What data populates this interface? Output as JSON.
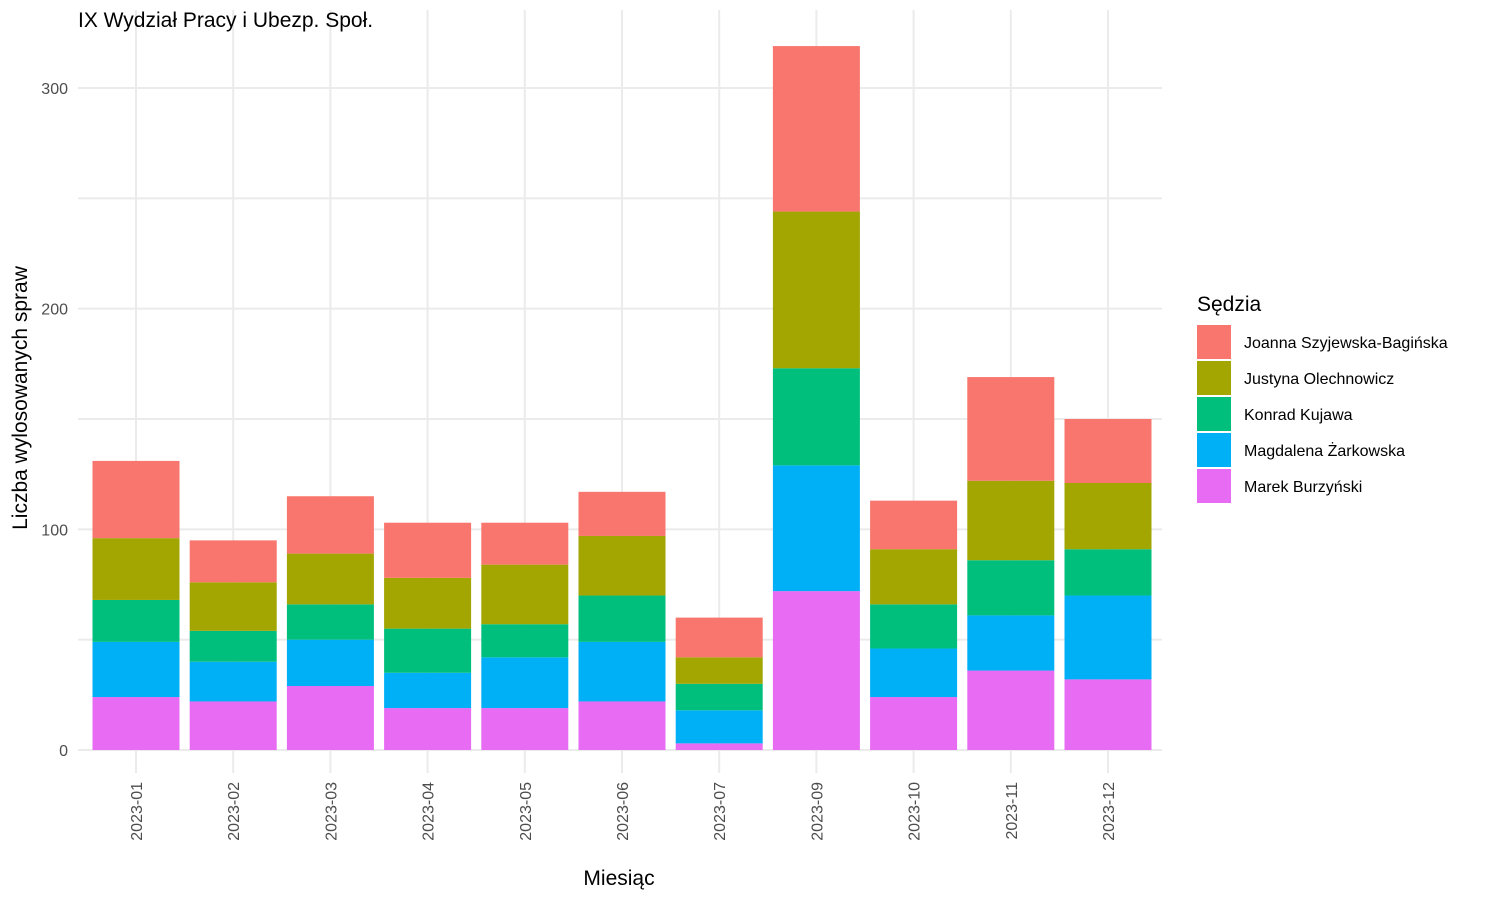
{
  "chart_data": {
    "type": "bar",
    "stacked": true,
    "title": "IX Wydział Pracy i Ubezp. Społ.",
    "xlabel": "Miesiąc",
    "ylabel": "Liczba wylosowanych spraw",
    "ylim": [
      0,
      320
    ],
    "yticks": [
      0,
      100,
      200,
      300
    ],
    "grid": true,
    "legend_title": "Sędzia",
    "legend_position": "right",
    "categories": [
      "2023-01",
      "2023-02",
      "2023-03",
      "2023-04",
      "2023-05",
      "2023-06",
      "2023-07",
      "2023-09",
      "2023-10",
      "2023-11",
      "2023-12"
    ],
    "series": [
      {
        "name": "Marek Burzyński",
        "color": "#E76BF3",
        "values": [
          24,
          22,
          29,
          19,
          19,
          22,
          3,
          72,
          24,
          36,
          32
        ]
      },
      {
        "name": "Magdalena Żarkowska",
        "color": "#00B0F6",
        "values": [
          25,
          18,
          21,
          16,
          23,
          27,
          15,
          57,
          22,
          25,
          38
        ]
      },
      {
        "name": "Konrad Kujawa",
        "color": "#00BF7D",
        "values": [
          19,
          14,
          16,
          20,
          15,
          21,
          12,
          44,
          20,
          25,
          21
        ]
      },
      {
        "name": "Justyna Olechnowicz",
        "color": "#A3A500",
        "values": [
          28,
          22,
          23,
          23,
          27,
          27,
          12,
          71,
          25,
          36,
          30
        ]
      },
      {
        "name": "Joanna Szyjewska-Bagińska",
        "color": "#F8766D",
        "values": [
          35,
          19,
          26,
          25,
          19,
          20,
          18,
          75,
          22,
          47,
          29
        ]
      }
    ],
    "legend_order": [
      "Joanna Szyjewska-Bagińska",
      "Justyna Olechnowicz",
      "Konrad Kujawa",
      "Magdalena Żarkowska",
      "Marek Burzyński"
    ]
  }
}
